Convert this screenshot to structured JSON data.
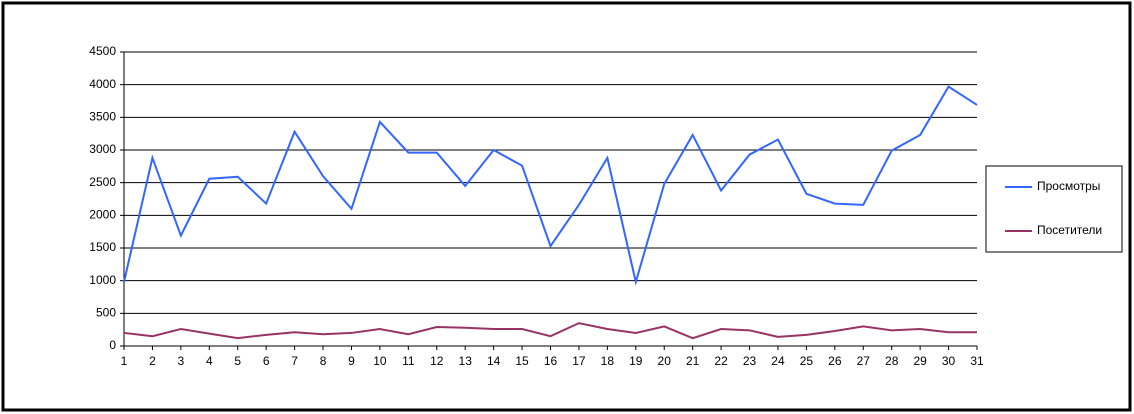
{
  "chart_data": {
    "type": "line",
    "categories": [
      "1",
      "2",
      "3",
      "4",
      "5",
      "6",
      "7",
      "8",
      "9",
      "10",
      "11",
      "12",
      "13",
      "14",
      "15",
      "16",
      "17",
      "18",
      "19",
      "20",
      "21",
      "22",
      "23",
      "24",
      "25",
      "26",
      "27",
      "28",
      "29",
      "30",
      "31"
    ],
    "series": [
      {
        "name": "Просмотры",
        "color": "#3366ff",
        "values": [
          980,
          2880,
          1690,
          2560,
          2590,
          2180,
          3280,
          2600,
          2100,
          3430,
          2960,
          2960,
          2450,
          3000,
          2760,
          1530,
          2160,
          2880,
          980,
          2480,
          3230,
          2380,
          2930,
          3160,
          2330,
          2180,
          2160,
          2990,
          3230,
          3970,
          3690
        ]
      },
      {
        "name": "Посетители",
        "color": "#993366",
        "values": [
          200,
          150,
          260,
          190,
          120,
          170,
          210,
          180,
          200,
          260,
          180,
          290,
          280,
          260,
          260,
          150,
          350,
          260,
          200,
          300,
          120,
          260,
          240,
          140,
          170,
          230,
          300,
          240,
          260,
          210,
          210
        ]
      }
    ],
    "ylim": [
      0,
      4500
    ],
    "yticks": [
      0,
      500,
      1000,
      1500,
      2000,
      2500,
      3000,
      3500,
      4000,
      4500
    ],
    "grid": true,
    "legend": "right"
  }
}
